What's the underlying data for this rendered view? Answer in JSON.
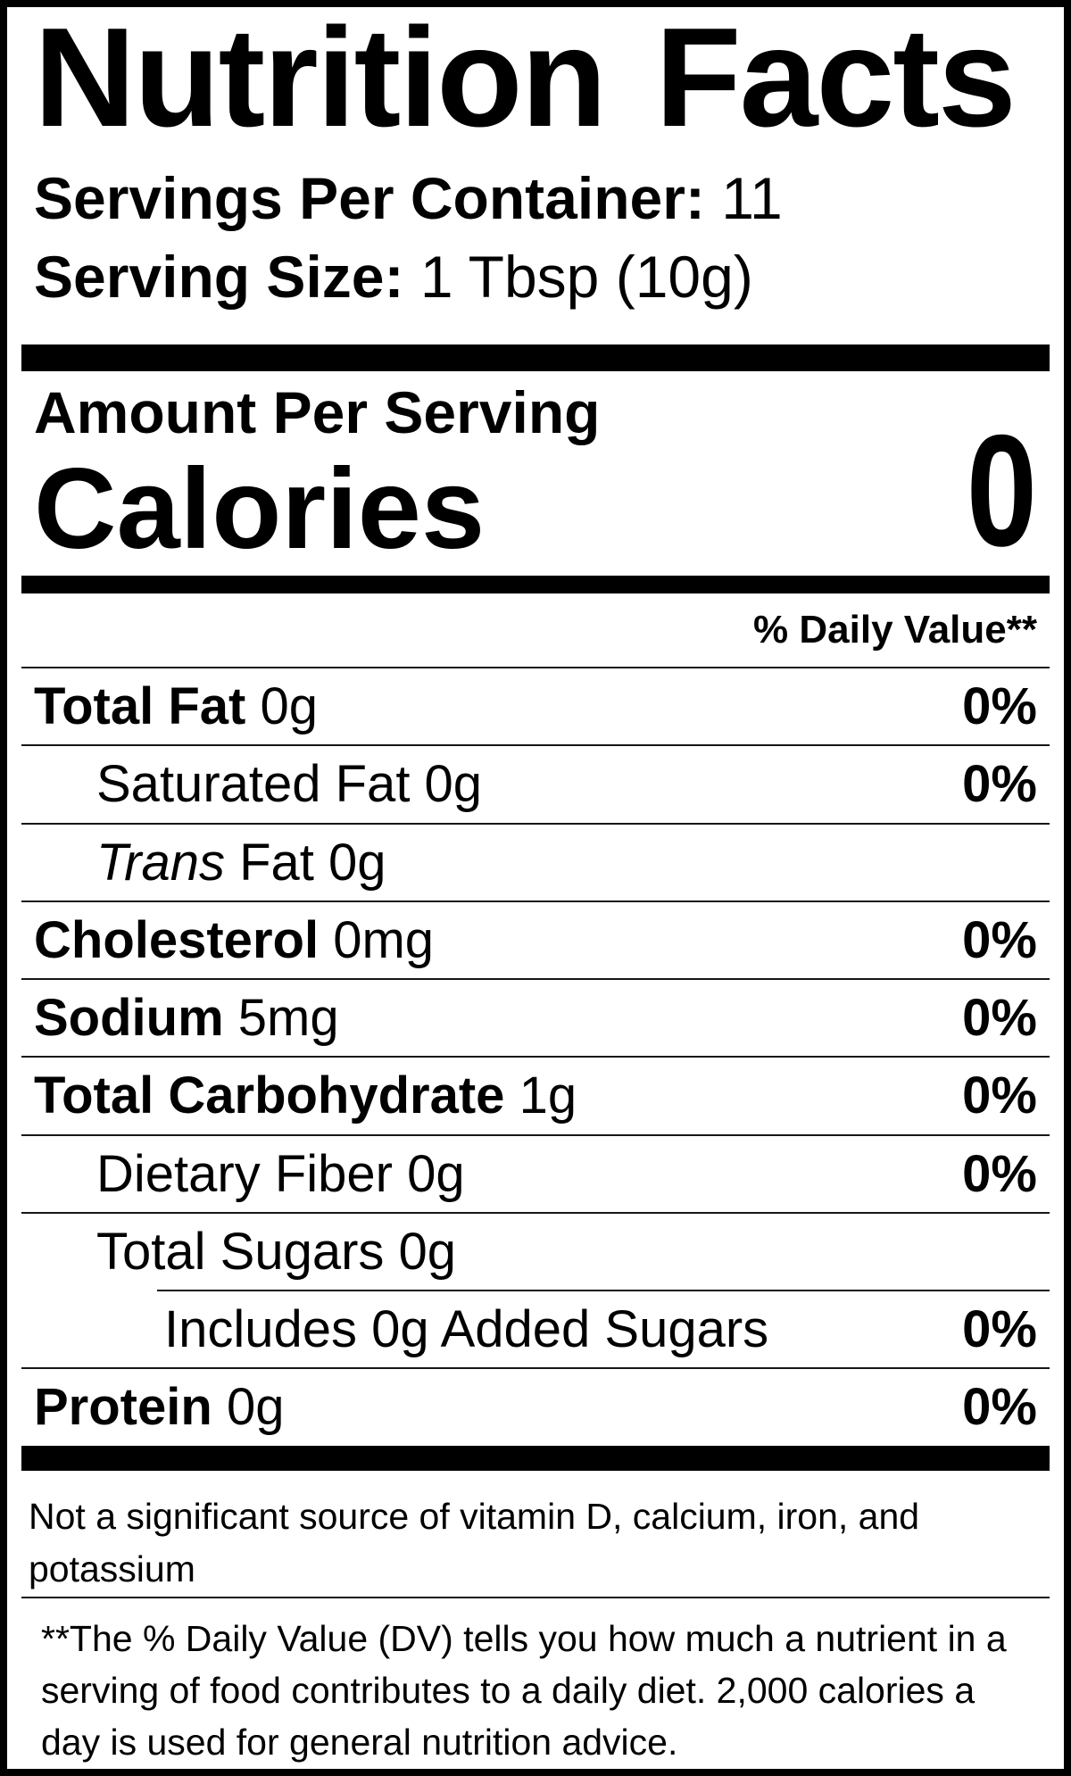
{
  "colors": {
    "text": "#000000",
    "background": "#ffffff",
    "rule": "#161616",
    "bar": "#000000"
  },
  "title": "Nutrition Facts",
  "servings_per_container": {
    "label": "Servings Per Container:",
    "value": "11"
  },
  "serving_size": {
    "label": "Serving Size:",
    "value": "1 Tbsp (10g)"
  },
  "amount_per_serving": "Amount Per Serving",
  "calories": {
    "label": "Calories",
    "value": "0"
  },
  "daily_value_header": "% Daily Value**",
  "nutrients": [
    {
      "parts": [
        {
          "t": "Total Fat",
          "s": "b"
        },
        {
          "t": "0g",
          "s": "r"
        }
      ],
      "dv": "0%",
      "indent": 0
    },
    {
      "parts": [
        {
          "t": "Saturated Fat 0g",
          "s": "r"
        }
      ],
      "dv": "0%",
      "indent": 1
    },
    {
      "parts": [
        {
          "t": "Trans",
          "s": "i"
        },
        {
          "t": "Fat 0g",
          "s": "r"
        }
      ],
      "dv": "",
      "indent": 1
    },
    {
      "parts": [
        {
          "t": "Cholesterol",
          "s": "b"
        },
        {
          "t": "0mg",
          "s": "r"
        }
      ],
      "dv": "0%",
      "indent": 0
    },
    {
      "parts": [
        {
          "t": "Sodium",
          "s": "b"
        },
        {
          "t": "5mg",
          "s": "r"
        }
      ],
      "dv": "0%",
      "indent": 0
    },
    {
      "parts": [
        {
          "t": "Total Carbohydrate",
          "s": "b"
        },
        {
          "t": "1g",
          "s": "r"
        }
      ],
      "dv": "0%",
      "indent": 0
    },
    {
      "parts": [
        {
          "t": "Dietary Fiber 0g",
          "s": "r"
        }
      ],
      "dv": "0%",
      "indent": 1
    },
    {
      "parts": [
        {
          "t": "Total Sugars 0g",
          "s": "r"
        }
      ],
      "dv": "",
      "indent": 1
    },
    {
      "parts": [
        {
          "t": "Includes 0g Added Sugars",
          "s": "r"
        }
      ],
      "dv": "0%",
      "indent": 2
    },
    {
      "parts": [
        {
          "t": "Protein",
          "s": "b"
        },
        {
          "t": "0g",
          "s": "r"
        }
      ],
      "dv": "0%",
      "indent": 0
    }
  ],
  "not_significant": "Not a significant source of vitamin D, calcium, iron, and\npotassium",
  "footnote": "**The % Daily Value (DV) tells you how much a nutrient in a\nserving of food contributes to a daily diet. 2,000 calories a\nday is used for general nutrition advice."
}
